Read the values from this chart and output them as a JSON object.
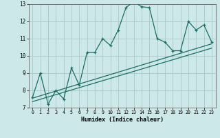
{
  "xlabel": "Humidex (Indice chaleur)",
  "xlim": [
    -0.5,
    23.5
  ],
  "ylim": [
    7,
    13
  ],
  "yticks": [
    7,
    8,
    9,
    10,
    11,
    12,
    13
  ],
  "xticks": [
    0,
    1,
    2,
    3,
    4,
    5,
    6,
    7,
    8,
    9,
    10,
    11,
    12,
    13,
    14,
    15,
    16,
    17,
    18,
    19,
    20,
    21,
    22,
    23
  ],
  "bg_color": "#cce8e8",
  "grid_color": "#b0cccc",
  "line_color": "#1a6e64",
  "line1_x": [
    0,
    1,
    2,
    3,
    4,
    5,
    6,
    7,
    8,
    9,
    10,
    11,
    12,
    13,
    14,
    15,
    16,
    17,
    18,
    19,
    20,
    21,
    22,
    23
  ],
  "line1_y": [
    7.6,
    9.0,
    7.2,
    8.0,
    7.5,
    9.3,
    8.3,
    10.2,
    10.2,
    11.0,
    10.6,
    11.5,
    12.8,
    13.15,
    12.85,
    12.8,
    11.0,
    10.8,
    10.3,
    10.3,
    12.0,
    11.5,
    11.8,
    10.8
  ],
  "line2_x": [
    0,
    23
  ],
  "line2_y": [
    7.55,
    10.7
  ],
  "line3_x": [
    0,
    23
  ],
  "line3_y": [
    7.35,
    10.45
  ],
  "marker": "+"
}
